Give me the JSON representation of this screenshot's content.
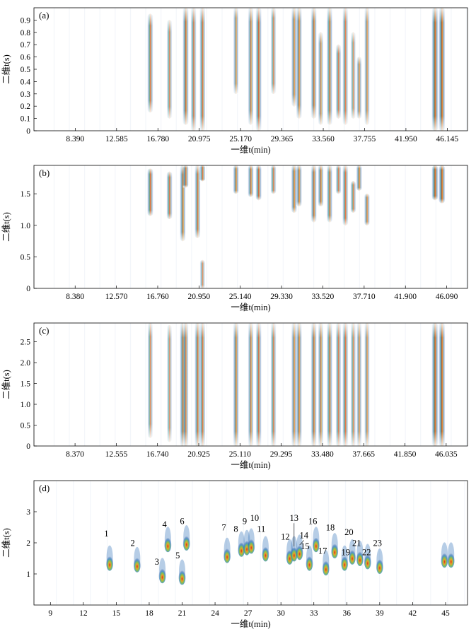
{
  "chart_data": [
    {
      "type": "heatmap",
      "panel_label": "(a)",
      "xlabel": "一维t(min)",
      "ylabel": "二维t(s)",
      "xlim": [
        4.2,
        48.2
      ],
      "ylim": [
        0,
        1.0
      ],
      "xtick_values": [
        8.39,
        12.585,
        16.78,
        20.975,
        25.17,
        29.365,
        33.56,
        37.755,
        41.95,
        46.145
      ],
      "xtick_labels": [
        "8.390",
        "12.585",
        "16.780",
        "20.975",
        "25.170",
        "29.365",
        "33.560",
        "37.755",
        "41.950",
        "46.145"
      ],
      "ytick_values": [
        0,
        0.1,
        0.2,
        0.3,
        0.4,
        0.5,
        0.6,
        0.7,
        0.8,
        0.9
      ],
      "ytick_labels": [
        "0",
        "0.1",
        "0.2",
        "0.3",
        "0.4",
        "0.5",
        "0.6",
        "0.7",
        "0.8",
        "0.9"
      ],
      "streaks": [
        {
          "x": 16.0,
          "y0": 0.15,
          "y1": 0.95,
          "i": 0.85
        },
        {
          "x": 17.95,
          "y0": 0.1,
          "y1": 0.9,
          "i": 0.75
        },
        {
          "x": 19.6,
          "y0": 0.05,
          "y1": 1.0,
          "i": 0.9
        },
        {
          "x": 20.4,
          "y0": 0.0,
          "y1": 1.0,
          "i": 0.8
        },
        {
          "x": 21.3,
          "y0": 0.0,
          "y1": 1.0,
          "i": 0.85
        },
        {
          "x": 24.7,
          "y0": 0.3,
          "y1": 1.0,
          "i": 0.75
        },
        {
          "x": 26.2,
          "y0": 0.05,
          "y1": 1.0,
          "i": 0.8
        },
        {
          "x": 27.0,
          "y0": 0.0,
          "y1": 1.0,
          "i": 0.9
        },
        {
          "x": 28.5,
          "y0": 0.3,
          "y1": 1.0,
          "i": 0.75
        },
        {
          "x": 30.6,
          "y0": 0.2,
          "y1": 1.0,
          "i": 0.8
        },
        {
          "x": 31.1,
          "y0": 0.1,
          "y1": 1.0,
          "i": 0.85
        },
        {
          "x": 32.6,
          "y0": 0.1,
          "y1": 1.0,
          "i": 0.85
        },
        {
          "x": 33.3,
          "y0": 0.05,
          "y1": 0.8,
          "i": 0.75
        },
        {
          "x": 34.2,
          "y0": 0.05,
          "y1": 1.0,
          "i": 0.85
        },
        {
          "x": 35.1,
          "y0": 0.1,
          "y1": 0.7,
          "i": 0.8
        },
        {
          "x": 35.8,
          "y0": 0.05,
          "y1": 1.0,
          "i": 0.8
        },
        {
          "x": 36.6,
          "y0": 0.1,
          "y1": 0.8,
          "i": 0.7
        },
        {
          "x": 37.2,
          "y0": 0.1,
          "y1": 0.6,
          "i": 0.75
        },
        {
          "x": 38.0,
          "y0": 0.05,
          "y1": 1.0,
          "i": 0.75
        },
        {
          "x": 44.9,
          "y0": 0.0,
          "y1": 1.0,
          "i": 1.0
        },
        {
          "x": 45.6,
          "y0": 0.0,
          "y1": 1.0,
          "i": 1.0
        }
      ]
    },
    {
      "type": "heatmap",
      "panel_label": "(b)",
      "xlabel": "一维t(min)",
      "ylabel": "二维t(s)",
      "xlim": [
        4.2,
        48.2
      ],
      "ylim": [
        0,
        1.95
      ],
      "xtick_values": [
        8.38,
        12.57,
        16.76,
        20.95,
        25.14,
        29.33,
        33.52,
        37.71,
        41.9,
        46.09
      ],
      "xtick_labels": [
        "8.380",
        "12.570",
        "16.760",
        "20.950",
        "25.140",
        "29.330",
        "33.520",
        "37.710",
        "41.900",
        "46.090"
      ],
      "ytick_values": [
        0,
        0.5,
        1.0,
        1.5
      ],
      "ytick_labels": [
        "0",
        "0.5",
        "1.0",
        "1.5"
      ],
      "streaks": [
        {
          "x": 16.0,
          "y0": 1.15,
          "y1": 1.9,
          "i": 0.9
        },
        {
          "x": 17.95,
          "y0": 1.1,
          "y1": 1.85,
          "i": 0.85
        },
        {
          "x": 19.3,
          "y0": 0.75,
          "y1": 1.95,
          "i": 0.85
        },
        {
          "x": 19.6,
          "y0": 1.6,
          "y1": 1.95,
          "i": 0.85
        },
        {
          "x": 20.8,
          "y0": 0.8,
          "y1": 1.95,
          "i": 0.85
        },
        {
          "x": 21.3,
          "y0": 1.7,
          "y1": 1.95,
          "i": 0.85
        },
        {
          "x": 21.3,
          "y0": 0.0,
          "y1": 0.45,
          "i": 0.7
        },
        {
          "x": 24.7,
          "y0": 1.5,
          "y1": 1.95,
          "i": 0.85
        },
        {
          "x": 26.2,
          "y0": 1.45,
          "y1": 1.95,
          "i": 0.85
        },
        {
          "x": 27.0,
          "y0": 1.4,
          "y1": 1.95,
          "i": 0.9
        },
        {
          "x": 28.5,
          "y0": 1.5,
          "y1": 1.95,
          "i": 0.8
        },
        {
          "x": 30.6,
          "y0": 1.2,
          "y1": 1.95,
          "i": 0.85
        },
        {
          "x": 31.1,
          "y0": 1.3,
          "y1": 1.95,
          "i": 0.85
        },
        {
          "x": 32.6,
          "y0": 1.05,
          "y1": 1.95,
          "i": 0.85
        },
        {
          "x": 33.3,
          "y0": 1.3,
          "y1": 1.95,
          "i": 0.85
        },
        {
          "x": 34.2,
          "y0": 1.05,
          "y1": 1.95,
          "i": 0.85
        },
        {
          "x": 35.1,
          "y0": 1.5,
          "y1": 1.95,
          "i": 0.8
        },
        {
          "x": 35.8,
          "y0": 1.0,
          "y1": 1.95,
          "i": 0.85
        },
        {
          "x": 36.6,
          "y0": 1.2,
          "y1": 1.7,
          "i": 0.8
        },
        {
          "x": 37.2,
          "y0": 1.55,
          "y1": 1.95,
          "i": 0.85
        },
        {
          "x": 38.0,
          "y0": 1.0,
          "y1": 1.5,
          "i": 0.8
        },
        {
          "x": 44.9,
          "y0": 1.4,
          "y1": 1.95,
          "i": 1.0
        },
        {
          "x": 45.6,
          "y0": 1.35,
          "y1": 1.95,
          "i": 1.0
        }
      ]
    },
    {
      "type": "heatmap",
      "panel_label": "(c)",
      "xlabel": "一维t(min)",
      "ylabel": "二维t(s)",
      "xlim": [
        4.2,
        48.2
      ],
      "ylim": [
        0,
        2.95
      ],
      "xtick_values": [
        8.37,
        12.555,
        16.74,
        20.925,
        25.11,
        29.295,
        33.48,
        37.665,
        41.85,
        46.035
      ],
      "xtick_labels": [
        "8.370",
        "12.555",
        "16.740",
        "20.925",
        "25.110",
        "29.295",
        "33.480",
        "37.665",
        "41.850",
        "46.035"
      ],
      "ytick_values": [
        0,
        0.5,
        1.0,
        1.5,
        2.0,
        2.5
      ],
      "ytick_labels": [
        "0",
        "0.5",
        "1.0",
        "1.5",
        "2.0",
        "2.5"
      ],
      "streaks": [
        {
          "x": 16.0,
          "y0": 0.2,
          "y1": 2.95,
          "i": 0.75
        },
        {
          "x": 17.95,
          "y0": 0.1,
          "y1": 2.9,
          "i": 0.7
        },
        {
          "x": 19.3,
          "y0": 0.0,
          "y1": 2.95,
          "i": 0.85
        },
        {
          "x": 19.6,
          "y0": 0.0,
          "y1": 2.95,
          "i": 0.8
        },
        {
          "x": 20.8,
          "y0": 0.0,
          "y1": 2.95,
          "i": 0.85
        },
        {
          "x": 21.3,
          "y0": 0.0,
          "y1": 2.95,
          "i": 0.85
        },
        {
          "x": 24.7,
          "y0": 0.0,
          "y1": 2.95,
          "i": 0.85
        },
        {
          "x": 26.2,
          "y0": 0.0,
          "y1": 2.95,
          "i": 0.8
        },
        {
          "x": 27.0,
          "y0": 0.0,
          "y1": 2.95,
          "i": 0.85
        },
        {
          "x": 28.5,
          "y0": 0.0,
          "y1": 2.95,
          "i": 0.8
        },
        {
          "x": 30.6,
          "y0": 0.0,
          "y1": 2.95,
          "i": 0.8
        },
        {
          "x": 31.1,
          "y0": 0.0,
          "y1": 2.95,
          "i": 0.85
        },
        {
          "x": 32.6,
          "y0": 0.0,
          "y1": 2.95,
          "i": 0.85
        },
        {
          "x": 33.3,
          "y0": 0.0,
          "y1": 2.95,
          "i": 0.8
        },
        {
          "x": 34.2,
          "y0": 0.0,
          "y1": 2.95,
          "i": 0.85
        },
        {
          "x": 35.1,
          "y0": 0.0,
          "y1": 2.95,
          "i": 0.8
        },
        {
          "x": 35.8,
          "y0": 0.0,
          "y1": 2.95,
          "i": 0.85
        },
        {
          "x": 36.6,
          "y0": 0.0,
          "y1": 2.95,
          "i": 0.75
        },
        {
          "x": 37.2,
          "y0": 0.0,
          "y1": 2.95,
          "i": 0.75
        },
        {
          "x": 38.0,
          "y0": 0.0,
          "y1": 2.95,
          "i": 0.75
        },
        {
          "x": 44.9,
          "y0": 0.0,
          "y1": 2.95,
          "i": 1.0
        },
        {
          "x": 45.6,
          "y0": 0.0,
          "y1": 2.95,
          "i": 1.0
        }
      ]
    },
    {
      "type": "heatmap",
      "panel_label": "(d)",
      "xlabel": "一维t(min)",
      "ylabel": "二维t(s)",
      "xlim": [
        7.5,
        47.0
      ],
      "ylim": [
        0,
        4.0
      ],
      "xtick_values": [
        9,
        12,
        15,
        18,
        21,
        24,
        27,
        30,
        33,
        36,
        39,
        42,
        45
      ],
      "xtick_labels": [
        "9",
        "12",
        "15",
        "18",
        "21",
        "24",
        "27",
        "30",
        "33",
        "36",
        "39",
        "42",
        "45"
      ],
      "ytick_values": [
        1,
        2,
        3
      ],
      "ytick_labels": [
        "1",
        "2",
        "3"
      ],
      "peaks": [
        {
          "label": "1",
          "x": 14.4,
          "y": 1.35,
          "lx": 14.1,
          "ly": 2.2
        },
        {
          "label": "2",
          "x": 16.9,
          "y": 1.3,
          "lx": 16.5,
          "ly": 1.9
        },
        {
          "label": "3",
          "x": 19.2,
          "y": 0.95,
          "lx": 18.7,
          "ly": 1.3
        },
        {
          "label": "4",
          "x": 19.7,
          "y": 1.95,
          "lx": 19.4,
          "ly": 2.5
        },
        {
          "label": "5",
          "x": 21.0,
          "y": 0.9,
          "lx": 20.6,
          "ly": 1.5
        },
        {
          "label": "6",
          "x": 21.4,
          "y": 2.0,
          "lx": 21.0,
          "ly": 2.6
        },
        {
          "label": "7",
          "x": 25.1,
          "y": 1.6,
          "lx": 24.8,
          "ly": 2.4
        },
        {
          "label": "8",
          "x": 26.4,
          "y": 1.8,
          "lx": 25.9,
          "ly": 2.35
        },
        {
          "label": "9",
          "x": 26.9,
          "y": 1.85,
          "lx": 26.7,
          "ly": 2.6
        },
        {
          "label": "10",
          "x": 27.3,
          "y": 1.9,
          "lx": 27.6,
          "ly": 2.7
        },
        {
          "label": "11",
          "x": 28.6,
          "y": 1.65,
          "lx": 28.2,
          "ly": 2.35
        },
        {
          "label": "12",
          "x": 30.8,
          "y": 1.55,
          "lx": 30.4,
          "ly": 2.1
        },
        {
          "label": "13",
          "x": 31.2,
          "y": 1.65,
          "lx": 31.2,
          "ly": 2.7
        },
        {
          "label": "14",
          "x": 31.7,
          "y": 1.7,
          "lx": 32.1,
          "ly": 2.15
        },
        {
          "label": "15",
          "x": 32.6,
          "y": 1.35,
          "lx": 32.2,
          "ly": 1.8
        },
        {
          "label": "16",
          "x": 33.2,
          "y": 1.95,
          "lx": 32.9,
          "ly": 2.6
        },
        {
          "label": "17",
          "x": 34.1,
          "y": 1.2,
          "lx": 33.8,
          "ly": 1.65
        },
        {
          "label": "18",
          "x": 34.9,
          "y": 1.75,
          "lx": 34.5,
          "ly": 2.4
        },
        {
          "label": "19",
          "x": 35.8,
          "y": 1.35,
          "lx": 35.9,
          "ly": 1.6
        },
        {
          "label": "20",
          "x": 36.5,
          "y": 1.55,
          "lx": 36.2,
          "ly": 2.25
        },
        {
          "label": "21",
          "x": 37.2,
          "y": 1.5,
          "lx": 36.9,
          "ly": 1.9
        },
        {
          "label": "22",
          "x": 37.9,
          "y": 1.4,
          "lx": 37.8,
          "ly": 1.6
        },
        {
          "label": "23",
          "x": 39.0,
          "y": 1.25,
          "lx": 38.8,
          "ly": 1.9
        },
        {
          "label": "",
          "x": 44.9,
          "y": 1.45,
          "lx": 0,
          "ly": 0
        },
        {
          "label": "",
          "x": 45.5,
          "y": 1.45,
          "lx": 0,
          "ly": 0
        }
      ]
    }
  ]
}
